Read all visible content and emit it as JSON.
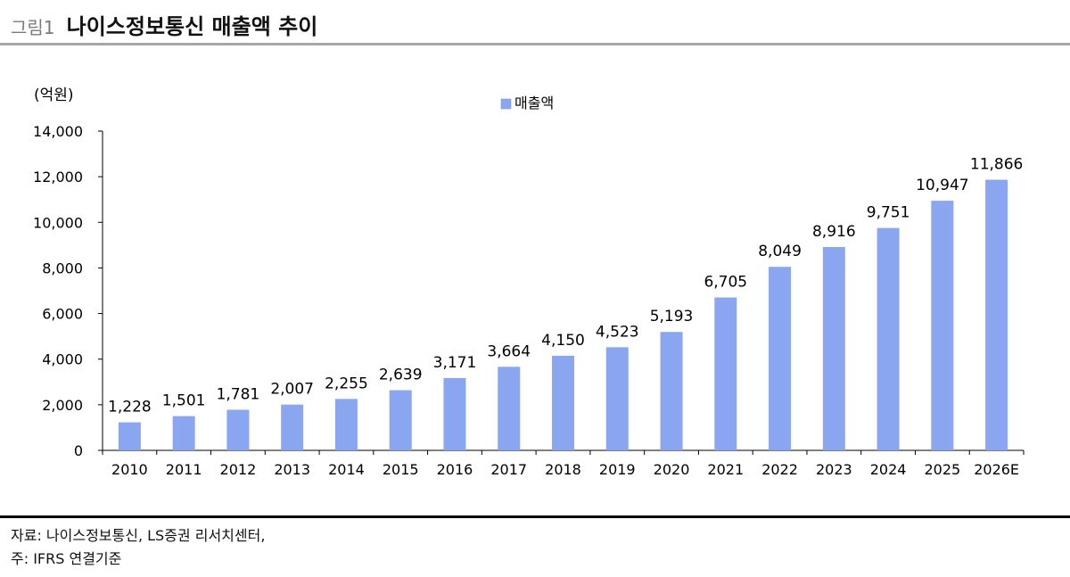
{
  "header": {
    "figure_label": "그림1",
    "title": "나이스정보통신 매출액 추이"
  },
  "chart_data": {
    "type": "bar",
    "unit_label": "(억원)",
    "categories": [
      "2010",
      "2011",
      "2012",
      "2013",
      "2014",
      "2015",
      "2016",
      "2017",
      "2018",
      "2019",
      "2020",
      "2021",
      "2022",
      "2023",
      "2024",
      "2025",
      "2026E"
    ],
    "series": [
      {
        "name": "매출액",
        "values": [
          1228,
          1501,
          1781,
          2007,
          2255,
          2639,
          3171,
          3664,
          4150,
          4523,
          5193,
          6705,
          8049,
          8916,
          9751,
          10947,
          11866
        ],
        "value_labels": [
          "1,228",
          "1,501",
          "1,781",
          "2,007",
          "2,255",
          "2,639",
          "3,171",
          "3,664",
          "4,150",
          "4,523",
          "5,193",
          "6,705",
          "8,049",
          "8,916",
          "9,751",
          "10,947",
          "11,866"
        ],
        "color": "#8ba6f0"
      }
    ],
    "ylim": [
      0,
      14000
    ],
    "y_ticks": [
      0,
      2000,
      4000,
      6000,
      8000,
      10000,
      12000,
      14000
    ],
    "y_tick_labels": [
      "0",
      "2,000",
      "4,000",
      "6,000",
      "8,000",
      "10,000",
      "12,000",
      "14,000"
    ],
    "grid": false,
    "legend_position": "top-center"
  },
  "footer": {
    "source": "자료: 나이스정보통신, LS증권 리서치센터,",
    "note": "주: IFRS 연결기준"
  }
}
